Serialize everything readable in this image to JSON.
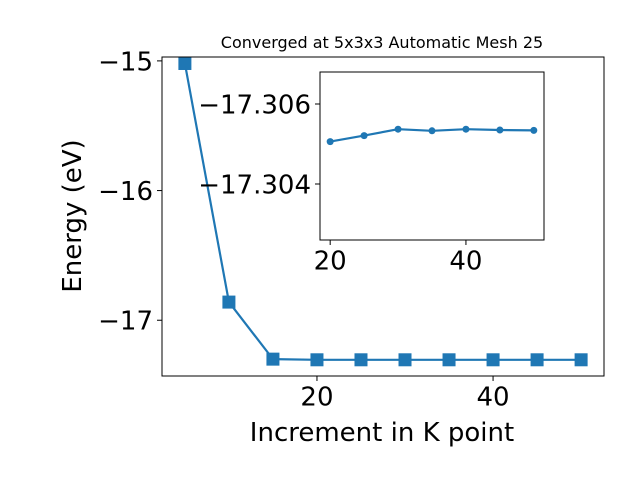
{
  "chart_data": [
    {
      "type": "line",
      "title": "Converged at 5x3x3 Automatic Mesh 25",
      "xlabel": "Increment in K point",
      "ylabel": "Energy (eV)",
      "xlim": [
        2.4,
        52.6
      ],
      "ylim": [
        -17.43,
        -14.97
      ],
      "xticks": [
        {
          "value": 20,
          "label": "20"
        },
        {
          "value": 40,
          "label": "40"
        }
      ],
      "yticks": [
        {
          "value": -15,
          "label": "−15"
        },
        {
          "value": -16,
          "label": "−16"
        },
        {
          "value": -17,
          "label": "−17"
        }
      ],
      "grid": false,
      "marker": "square",
      "color": "#1f77b4",
      "series": [
        {
          "x": [
            5,
            10,
            15,
            20,
            25,
            30,
            35,
            40,
            45,
            50
          ],
          "values": [
            -15.02,
            -16.86,
            -17.3,
            -17.305,
            -17.305,
            -17.305,
            -17.305,
            -17.305,
            -17.305,
            -17.305
          ]
        }
      ]
    },
    {
      "type": "line",
      "role": "inset",
      "xlim": [
        18.5,
        51.5
      ],
      "ylim": [
        -17.3068,
        -17.3026
      ],
      "y_inverted": true,
      "xticks": [
        {
          "value": 20,
          "label": "20"
        },
        {
          "value": 40,
          "label": "40"
        }
      ],
      "yticks": [
        {
          "value": -17.306,
          "label": "−17.306"
        },
        {
          "value": -17.304,
          "label": "−17.304"
        }
      ],
      "grid": false,
      "marker": "circle",
      "color": "#1f77b4",
      "series": [
        {
          "x": [
            20,
            25,
            30,
            35,
            40,
            45,
            50
          ],
          "values": [
            -17.30506,
            -17.30521,
            -17.30537,
            -17.30533,
            -17.30537,
            -17.30535,
            -17.30534
          ]
        }
      ]
    }
  ]
}
